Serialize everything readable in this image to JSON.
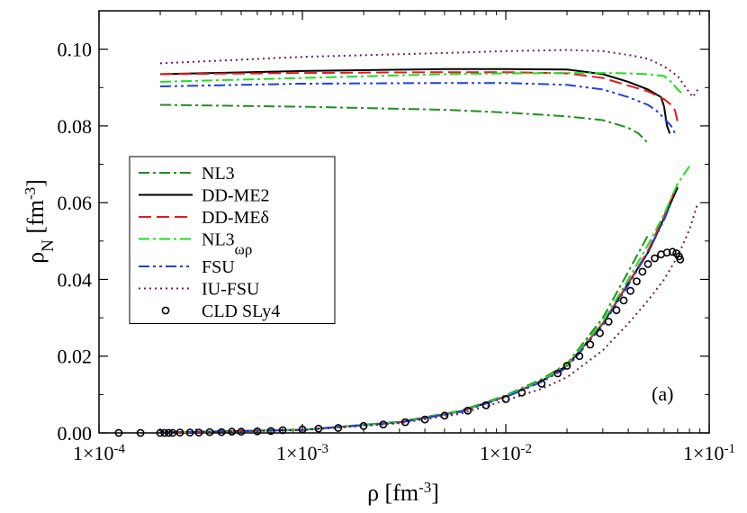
{
  "chart_data": {
    "type": "line",
    "xscale": "log",
    "xlim": [
      0.0001,
      0.1
    ],
    "ylim": [
      0.0,
      0.11
    ],
    "x_ticks": [
      0.0001,
      0.001,
      0.01,
      0.1
    ],
    "x_tick_labels": [
      {
        "mant": "1×10",
        "exp": "-4"
      },
      {
        "mant": "1×10",
        "exp": "-3"
      },
      {
        "mant": "1×10",
        "exp": "-2"
      },
      {
        "mant": "1×10",
        "exp": "-1"
      }
    ],
    "y_ticks": [
      0.0,
      0.02,
      0.04,
      0.06,
      0.08,
      0.1
    ],
    "y_tick_labels": [
      "0.00",
      "0.02",
      "0.04",
      "0.06",
      "0.08",
      "0.10"
    ],
    "xlabel": {
      "main": "ρ [fm",
      "sup": "-3",
      "close": "]"
    },
    "ylabel": {
      "main": "ρ",
      "sub": "N",
      "mid": " [fm",
      "sup": "-3",
      "close": "]"
    },
    "annotation": "(a)",
    "legend_position": "left-middle",
    "series": [
      {
        "name": "NL3",
        "sub": "",
        "color": "#1f8f1f",
        "dash": "12,4,3,4",
        "upper": [
          [
            0.0002,
            0.0855
          ],
          [
            0.001,
            0.085
          ],
          [
            0.005,
            0.0842
          ],
          [
            0.01,
            0.0835
          ],
          [
            0.02,
            0.0825
          ],
          [
            0.03,
            0.0815
          ],
          [
            0.04,
            0.0795
          ],
          [
            0.045,
            0.078
          ],
          [
            0.05,
            0.0755
          ]
        ],
        "lower": [
          [
            0.0002,
            0.0001
          ],
          [
            0.001,
            0.0008
          ],
          [
            0.003,
            0.0029
          ],
          [
            0.006,
            0.0058
          ],
          [
            0.01,
            0.0098
          ],
          [
            0.015,
            0.014
          ],
          [
            0.02,
            0.018
          ],
          [
            0.03,
            0.03
          ],
          [
            0.04,
            0.042
          ],
          [
            0.05,
            0.0515
          ]
        ]
      },
      {
        "name": "DD-ME2",
        "sub": "",
        "color": "#000000",
        "dash": "",
        "upper": [
          [
            0.0002,
            0.0935
          ],
          [
            0.001,
            0.0943
          ],
          [
            0.005,
            0.0948
          ],
          [
            0.01,
            0.0948
          ],
          [
            0.02,
            0.0947
          ],
          [
            0.03,
            0.0935
          ],
          [
            0.04,
            0.0915
          ],
          [
            0.05,
            0.0895
          ],
          [
            0.058,
            0.0875
          ],
          [
            0.06,
            0.085
          ],
          [
            0.062,
            0.08
          ],
          [
            0.064,
            0.078
          ]
        ],
        "lower": [
          [
            0.0002,
            0.0001
          ],
          [
            0.001,
            0.0008
          ],
          [
            0.003,
            0.0028
          ],
          [
            0.006,
            0.0056
          ],
          [
            0.01,
            0.0095
          ],
          [
            0.015,
            0.0135
          ],
          [
            0.02,
            0.0175
          ],
          [
            0.03,
            0.0285
          ],
          [
            0.04,
            0.039
          ],
          [
            0.05,
            0.047
          ],
          [
            0.06,
            0.056
          ],
          [
            0.07,
            0.064
          ]
        ]
      },
      {
        "name": "DD-MEδ",
        "sub": "",
        "color": "#e31a1c",
        "dash": "14,6",
        "upper": [
          [
            0.0002,
            0.0935
          ],
          [
            0.001,
            0.0938
          ],
          [
            0.005,
            0.094
          ],
          [
            0.01,
            0.094
          ],
          [
            0.02,
            0.0937
          ],
          [
            0.03,
            0.0925
          ],
          [
            0.04,
            0.0905
          ],
          [
            0.05,
            0.089
          ],
          [
            0.06,
            0.087
          ],
          [
            0.065,
            0.0855
          ],
          [
            0.068,
            0.084
          ],
          [
            0.07,
            0.081
          ]
        ],
        "lower": [
          [
            0.0002,
            0.0001
          ],
          [
            0.001,
            0.0008
          ],
          [
            0.003,
            0.0028
          ],
          [
            0.006,
            0.0056
          ],
          [
            0.01,
            0.0095
          ],
          [
            0.015,
            0.0135
          ],
          [
            0.02,
            0.0175
          ],
          [
            0.03,
            0.0285
          ],
          [
            0.04,
            0.039
          ],
          [
            0.05,
            0.0475
          ],
          [
            0.06,
            0.0565
          ],
          [
            0.07,
            0.065
          ]
        ]
      },
      {
        "name": "NL3",
        "sub": "ωρ",
        "color": "#22dd22",
        "dash": "12,4,3,4",
        "upper": [
          [
            0.0002,
            0.0915
          ],
          [
            0.001,
            0.0925
          ],
          [
            0.005,
            0.0935
          ],
          [
            0.01,
            0.0937
          ],
          [
            0.02,
            0.0938
          ],
          [
            0.03,
            0.0938
          ],
          [
            0.04,
            0.0937
          ],
          [
            0.05,
            0.0935
          ],
          [
            0.06,
            0.093
          ],
          [
            0.065,
            0.0915
          ],
          [
            0.07,
            0.0895
          ],
          [
            0.075,
            0.088
          ]
        ],
        "lower": [
          [
            0.0002,
            0.0001
          ],
          [
            0.001,
            0.0008
          ],
          [
            0.003,
            0.0028
          ],
          [
            0.006,
            0.0057
          ],
          [
            0.01,
            0.0096
          ],
          [
            0.015,
            0.0136
          ],
          [
            0.02,
            0.0178
          ],
          [
            0.03,
            0.029
          ],
          [
            0.04,
            0.04
          ],
          [
            0.05,
            0.049
          ],
          [
            0.06,
            0.057
          ],
          [
            0.07,
            0.065
          ],
          [
            0.08,
            0.0695
          ]
        ]
      },
      {
        "name": "FSU",
        "sub": "",
        "color": "#1f3fe0",
        "dash": "12,4,3,4,3,4",
        "upper": [
          [
            0.0002,
            0.0903
          ],
          [
            0.001,
            0.091
          ],
          [
            0.005,
            0.0912
          ],
          [
            0.01,
            0.0912
          ],
          [
            0.02,
            0.0907
          ],
          [
            0.03,
            0.0895
          ],
          [
            0.04,
            0.0875
          ],
          [
            0.05,
            0.0855
          ],
          [
            0.055,
            0.084
          ],
          [
            0.06,
            0.082
          ],
          [
            0.065,
            0.08
          ],
          [
            0.068,
            0.078
          ]
        ],
        "lower": [
          [
            0.0002,
            0.0001
          ],
          [
            0.001,
            0.0008
          ],
          [
            0.003,
            0.0027
          ],
          [
            0.006,
            0.0055
          ],
          [
            0.01,
            0.0093
          ],
          [
            0.015,
            0.0133
          ],
          [
            0.02,
            0.017
          ],
          [
            0.03,
            0.028
          ],
          [
            0.04,
            0.0385
          ],
          [
            0.05,
            0.047
          ],
          [
            0.06,
            0.0555
          ],
          [
            0.065,
            0.06
          ]
        ]
      },
      {
        "name": "IU-FSU",
        "sub": "",
        "color": "#6b1f4f",
        "dash": "2,4",
        "upper": [
          [
            0.0002,
            0.0963
          ],
          [
            0.001,
            0.098
          ],
          [
            0.005,
            0.099
          ],
          [
            0.01,
            0.0995
          ],
          [
            0.02,
            0.0998
          ],
          [
            0.03,
            0.0995
          ],
          [
            0.04,
            0.0985
          ],
          [
            0.05,
            0.0975
          ],
          [
            0.06,
            0.0955
          ],
          [
            0.07,
            0.093
          ],
          [
            0.078,
            0.0895
          ],
          [
            0.083,
            0.0875
          ],
          [
            0.088,
            0.0895
          ]
        ],
        "lower": [
          [
            0.0002,
            0.0001
          ],
          [
            0.001,
            0.0007
          ],
          [
            0.003,
            0.0025
          ],
          [
            0.006,
            0.005
          ],
          [
            0.01,
            0.0085
          ],
          [
            0.015,
            0.0115
          ],
          [
            0.02,
            0.0145
          ],
          [
            0.03,
            0.0215
          ],
          [
            0.04,
            0.0285
          ],
          [
            0.05,
            0.0345
          ],
          [
            0.06,
            0.04
          ],
          [
            0.07,
            0.046
          ],
          [
            0.08,
            0.053
          ],
          [
            0.088,
            0.06
          ]
        ]
      }
    ],
    "scatter": {
      "name": "CLD SLy4",
      "points": [
        [
          0.000125,
          0.0
        ],
        [
          0.00016,
          0.0
        ],
        [
          0.0002,
          0.0
        ],
        [
          0.00021,
          0.0
        ],
        [
          0.00022,
          0.0
        ],
        [
          0.00023,
          0.0
        ],
        [
          0.00025,
          0.0001
        ],
        [
          0.00028,
          0.0001
        ],
        [
          0.00031,
          0.0001
        ],
        [
          0.00035,
          0.0002
        ],
        [
          0.0004,
          0.0002
        ],
        [
          0.00045,
          0.0003
        ],
        [
          0.0005,
          0.0003
        ],
        [
          0.0006,
          0.0004
        ],
        [
          0.0007,
          0.0005
        ],
        [
          0.0008,
          0.0007
        ],
        [
          0.001,
          0.0009
        ],
        [
          0.0012,
          0.0011
        ],
        [
          0.0015,
          0.0013
        ],
        [
          0.002,
          0.0018
        ],
        [
          0.0025,
          0.0022
        ],
        [
          0.0032,
          0.0028
        ],
        [
          0.004,
          0.0035
        ],
        [
          0.005,
          0.0045
        ],
        [
          0.0065,
          0.0058
        ],
        [
          0.008,
          0.0072
        ],
        [
          0.01,
          0.0088
        ],
        [
          0.012,
          0.0105
        ],
        [
          0.015,
          0.0128
        ],
        [
          0.018,
          0.0155
        ],
        [
          0.02,
          0.0175
        ],
        [
          0.023,
          0.02
        ],
        [
          0.026,
          0.023
        ],
        [
          0.029,
          0.026
        ],
        [
          0.032,
          0.029
        ],
        [
          0.035,
          0.032
        ],
        [
          0.038,
          0.0345
        ],
        [
          0.041,
          0.037
        ],
        [
          0.044,
          0.0395
        ],
        [
          0.047,
          0.042
        ],
        [
          0.05,
          0.044
        ],
        [
          0.054,
          0.0455
        ],
        [
          0.058,
          0.0465
        ],
        [
          0.062,
          0.047
        ],
        [
          0.066,
          0.0472
        ],
        [
          0.069,
          0.0468
        ],
        [
          0.071,
          0.046
        ],
        [
          0.072,
          0.0452
        ]
      ]
    }
  }
}
